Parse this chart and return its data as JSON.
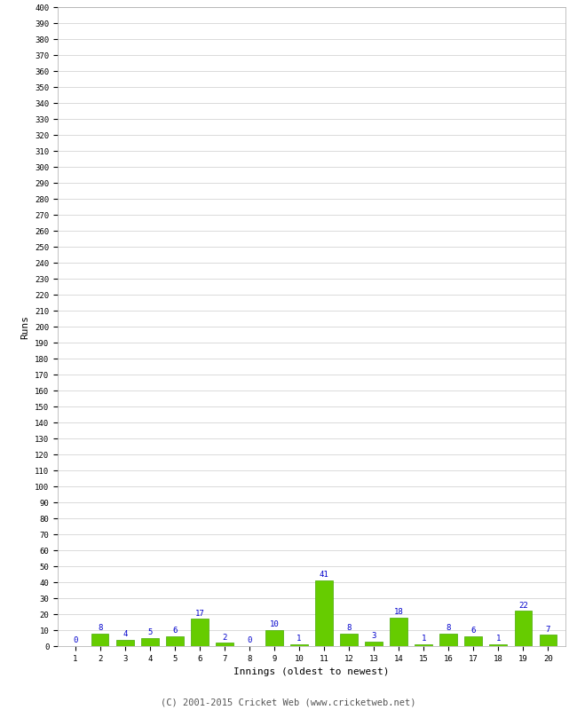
{
  "innings": [
    1,
    2,
    3,
    4,
    5,
    6,
    7,
    8,
    9,
    10,
    11,
    12,
    13,
    14,
    15,
    16,
    17,
    18,
    19,
    20
  ],
  "runs": [
    0,
    8,
    4,
    5,
    6,
    17,
    2,
    0,
    10,
    1,
    41,
    8,
    3,
    18,
    1,
    8,
    6,
    1,
    22,
    7
  ],
  "bar_color": "#66cc00",
  "bar_edge_color": "#44aa00",
  "xlabel": "Innings (oldest to newest)",
  "ylabel": "Runs",
  "ylim": [
    0,
    400
  ],
  "grid_color": "#cccccc",
  "background_color": "#ffffff",
  "label_color": "#0000cc",
  "label_fontsize": 6.5,
  "axis_fontsize": 6.5,
  "xlabel_fontsize": 8,
  "ylabel_fontsize": 8,
  "footer": "(C) 2001-2015 Cricket Web (www.cricketweb.net)",
  "footer_fontsize": 7.5
}
